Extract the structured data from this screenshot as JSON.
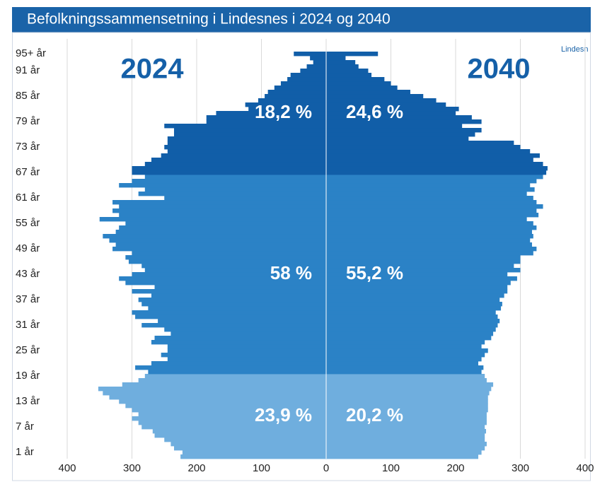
{
  "chart_data": {
    "type": "pyramid",
    "title": "Befolkningssammensetning i Lindesnes i 2024 og 2040",
    "source": "Lindesn",
    "categories": [
      null,
      "1 år",
      null,
      null,
      null,
      null,
      null,
      "7 år",
      null,
      null,
      null,
      null,
      null,
      "13 år",
      null,
      null,
      null,
      null,
      null,
      "19 år",
      null,
      null,
      null,
      null,
      null,
      "25 år",
      null,
      null,
      null,
      null,
      null,
      "31 år",
      null,
      null,
      null,
      null,
      null,
      "37 år",
      null,
      null,
      null,
      null,
      null,
      "43 år",
      null,
      null,
      null,
      null,
      null,
      "49 år",
      null,
      null,
      null,
      null,
      null,
      "55 år",
      null,
      null,
      null,
      null,
      null,
      "61 år",
      null,
      null,
      null,
      null,
      null,
      "67 år",
      null,
      null,
      null,
      null,
      null,
      "73 år",
      null,
      null,
      null,
      null,
      null,
      "79 år",
      null,
      null,
      null,
      null,
      null,
      "85 år",
      null,
      null,
      null,
      null,
      null,
      "91 år",
      null,
      null,
      null,
      "95+ år"
    ],
    "bar_colors": [
      "#6faede",
      "#6faede",
      "#6faede",
      "#6faede",
      "#6faede",
      "#6faede",
      "#6faede",
      "#6faede",
      "#6faede",
      "#6faede",
      "#6faede",
      "#6faede",
      "#6faede",
      "#6faede",
      "#6faede",
      "#6faede",
      "#6faede",
      "#6faede",
      "#6faede",
      "#6faede",
      "#2b82c6",
      "#2b82c6",
      "#2b82c6",
      "#2b82c6",
      "#2b82c6",
      "#2b82c6",
      "#2b82c6",
      "#2b82c6",
      "#2b82c6",
      "#2b82c6",
      "#2b82c6",
      "#2b82c6",
      "#2b82c6",
      "#2b82c6",
      "#2b82c6",
      "#2b82c6",
      "#2b82c6",
      "#2b82c6",
      "#2b82c6",
      "#2b82c6",
      "#2b82c6",
      "#2b82c6",
      "#2b82c6",
      "#2b82c6",
      "#2b82c6",
      "#2b82c6",
      "#2b82c6",
      "#2b82c6",
      "#2b82c6",
      "#2b82c6",
      "#2b82c6",
      "#2b82c6",
      "#2b82c6",
      "#2b82c6",
      "#2b82c6",
      "#2b82c6",
      "#2b82c6",
      "#2b82c6",
      "#2b82c6",
      "#2b82c6",
      "#2b82c6",
      "#2b82c6",
      "#2b82c6",
      "#2b82c6",
      "#2b82c6",
      "#2b82c6",
      "#2b82c6",
      "#115ea8",
      "#115ea8",
      "#115ea8",
      "#115ea8",
      "#115ea8",
      "#115ea8",
      "#115ea8",
      "#115ea8",
      "#115ea8",
      "#115ea8",
      "#115ea8",
      "#115ea8",
      "#115ea8",
      "#115ea8",
      "#115ea8",
      "#115ea8",
      "#115ea8",
      "#115ea8",
      "#115ea8",
      "#115ea8",
      "#115ea8",
      "#115ea8",
      "#115ea8",
      "#115ea8",
      "#115ea8",
      "#115ea8",
      "#115ea8",
      "#115ea8",
      "#115ea8"
    ],
    "series": [
      {
        "name": "2024",
        "side": "left",
        "group_labels": [
          "23,9 %",
          "58 %",
          "18,2 %"
        ],
        "values": [
          225,
          222,
          235,
          240,
          250,
          265,
          268,
          285,
          290,
          300,
          290,
          300,
          310,
          320,
          335,
          345,
          352,
          315,
          290,
          280,
          275,
          295,
          270,
          245,
          255,
          245,
          245,
          270,
          265,
          240,
          250,
          285,
          260,
          295,
          300,
          275,
          285,
          290,
          270,
          300,
          265,
          310,
          320,
          300,
          280,
          285,
          305,
          310,
          300,
          330,
          325,
          335,
          345,
          325,
          320,
          310,
          350,
          320,
          330,
          320,
          330,
          250,
          290,
          280,
          320,
          300,
          280,
          300,
          300,
          280,
          270,
          255,
          245,
          250,
          245,
          245,
          235,
          235,
          250,
          185,
          185,
          170,
          120,
          125,
          105,
          95,
          90,
          80,
          70,
          60,
          55,
          40,
          30,
          20,
          25,
          50
        ]
      },
      {
        "name": "2040",
        "side": "right",
        "group_labels": [
          "20,2 %",
          "55,2 %",
          "24,6 %"
        ],
        "values": [
          235,
          240,
          245,
          248,
          245,
          245,
          247,
          245,
          248,
          248,
          248,
          250,
          250,
          250,
          250,
          252,
          255,
          258,
          248,
          245,
          240,
          243,
          235,
          240,
          245,
          250,
          240,
          245,
          255,
          258,
          262,
          265,
          268,
          265,
          262,
          270,
          272,
          268,
          275,
          280,
          280,
          285,
          295,
          280,
          300,
          290,
          300,
          300,
          320,
          325,
          318,
          315,
          320,
          318,
          325,
          320,
          310,
          328,
          325,
          335,
          325,
          320,
          310,
          322,
          315,
          325,
          335,
          340,
          342,
          335,
          320,
          330,
          315,
          300,
          290,
          220,
          230,
          240,
          210,
          240,
          225,
          200,
          205,
          185,
          170,
          150,
          130,
          110,
          100,
          90,
          70,
          65,
          50,
          45,
          30,
          80
        ]
      }
    ],
    "xlim": [
      0,
      400
    ],
    "xticks": [
      0,
      100,
      200,
      300,
      400
    ],
    "grid": true
  }
}
